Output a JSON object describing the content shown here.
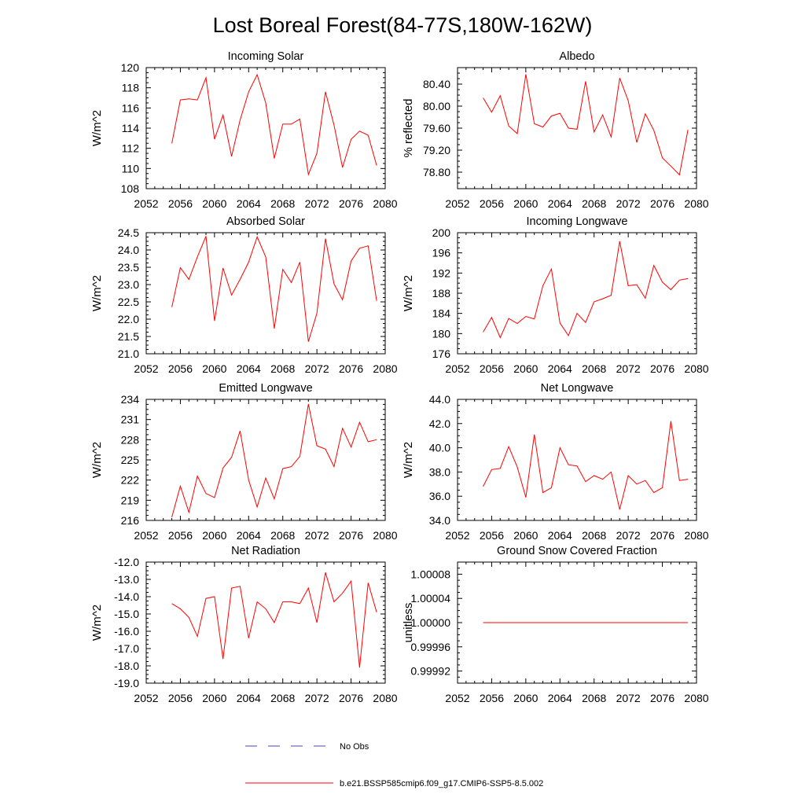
{
  "title": "Lost Boreal Forest(84-77S,180W-162W)",
  "legend": [
    {
      "label": "No Obs",
      "color": "#4a4aa8",
      "style": "dashed"
    },
    {
      "label": "b.e21.BSSP585cmip6.f09_g17.CMIP6-SSP5-8.5.002",
      "color": "#ff0000",
      "style": "solid"
    }
  ],
  "chart_data": [
    {
      "type": "line",
      "title": "Incoming Solar",
      "ylabel": "W/m^2",
      "xlim": [
        2052,
        2080
      ],
      "ylim": [
        108,
        120
      ],
      "xticks": [
        2052,
        2056,
        2060,
        2064,
        2068,
        2072,
        2076,
        2080
      ],
      "yticks": [
        108,
        110,
        112,
        114,
        116,
        118,
        120
      ],
      "yticklabels": [
        "108",
        "110",
        "112",
        "114",
        "116",
        "118",
        "120"
      ],
      "x": [
        2055,
        2056,
        2057,
        2058,
        2059,
        2060,
        2061,
        2062,
        2063,
        2064,
        2065,
        2066,
        2067,
        2068,
        2069,
        2070,
        2071,
        2072,
        2073,
        2074,
        2075,
        2076,
        2077,
        2078,
        2079
      ],
      "series": [
        {
          "color": "#ff0000",
          "values": [
            112.5,
            116.8,
            116.9,
            116.8,
            119.0,
            112.9,
            115.3,
            111.2,
            114.8,
            117.6,
            119.3,
            116.5,
            111.0,
            114.4,
            114.4,
            114.9,
            109.4,
            111.5,
            117.6,
            114.3,
            110.1,
            112.9,
            113.7,
            113.3,
            110.3
          ]
        }
      ]
    },
    {
      "type": "line",
      "title": "Albedo",
      "ylabel": "% reflected",
      "xlim": [
        2052,
        2080
      ],
      "ylim": [
        78.5,
        80.7
      ],
      "xticks": [
        2052,
        2056,
        2060,
        2064,
        2068,
        2072,
        2076,
        2080
      ],
      "yticks": [
        78.8,
        79.2,
        79.6,
        80.0,
        80.4
      ],
      "yticklabels": [
        "78.80",
        "79.20",
        "79.60",
        "80.00",
        "80.40"
      ],
      "x": [
        2055,
        2056,
        2057,
        2058,
        2059,
        2060,
        2061,
        2062,
        2063,
        2064,
        2065,
        2066,
        2067,
        2068,
        2069,
        2070,
        2071,
        2072,
        2073,
        2074,
        2075,
        2076,
        2077,
        2078,
        2079
      ],
      "series": [
        {
          "color": "#ff0000",
          "values": [
            80.15,
            79.89,
            80.19,
            79.64,
            79.5,
            80.58,
            79.68,
            79.62,
            79.82,
            79.87,
            79.6,
            79.58,
            80.45,
            79.53,
            79.84,
            79.44,
            80.51,
            80.1,
            79.34,
            79.86,
            79.56,
            79.06,
            78.91,
            78.75,
            79.57
          ]
        }
      ]
    },
    {
      "type": "line",
      "title": "Absorbed Solar",
      "ylabel": "W/m^2",
      "xlim": [
        2052,
        2080
      ],
      "ylim": [
        21.0,
        24.5
      ],
      "xticks": [
        2052,
        2056,
        2060,
        2064,
        2068,
        2072,
        2076,
        2080
      ],
      "yticks": [
        21.0,
        21.5,
        22.0,
        22.5,
        23.0,
        23.5,
        24.0,
        24.5
      ],
      "yticklabels": [
        "21.0",
        "21.5",
        "22.0",
        "22.5",
        "23.0",
        "23.5",
        "24.0",
        "24.5"
      ],
      "x": [
        2055,
        2056,
        2057,
        2058,
        2059,
        2060,
        2061,
        2062,
        2063,
        2064,
        2065,
        2066,
        2067,
        2068,
        2069,
        2070,
        2071,
        2072,
        2073,
        2074,
        2075,
        2076,
        2077,
        2078,
        2079
      ],
      "series": [
        {
          "color": "#ff0000",
          "values": [
            22.35,
            23.49,
            23.15,
            23.8,
            24.4,
            21.95,
            23.48,
            22.7,
            23.15,
            23.65,
            24.38,
            23.8,
            21.73,
            23.44,
            23.06,
            23.65,
            21.35,
            22.17,
            24.33,
            23.02,
            22.56,
            23.68,
            24.05,
            24.12,
            22.53
          ]
        }
      ]
    },
    {
      "type": "line",
      "title": "Incoming Longwave",
      "ylabel": "W/m^2",
      "xlim": [
        2052,
        2080
      ],
      "ylim": [
        176,
        200
      ],
      "xticks": [
        2052,
        2056,
        2060,
        2064,
        2068,
        2072,
        2076,
        2080
      ],
      "yticks": [
        176,
        180,
        184,
        188,
        192,
        196,
        200
      ],
      "yticklabels": [
        "176",
        "180",
        "184",
        "188",
        "192",
        "196",
        "200"
      ],
      "x": [
        2055,
        2056,
        2057,
        2058,
        2059,
        2060,
        2061,
        2062,
        2063,
        2064,
        2065,
        2066,
        2067,
        2068,
        2069,
        2070,
        2071,
        2072,
        2073,
        2074,
        2075,
        2076,
        2077,
        2078,
        2079
      ],
      "series": [
        {
          "color": "#ff0000",
          "values": [
            180.3,
            183.2,
            179.2,
            183.0,
            182.0,
            183.4,
            182.9,
            189.5,
            192.8,
            182.1,
            179.6,
            184.0,
            182.2,
            186.3,
            186.9,
            187.6,
            198.3,
            189.5,
            189.7,
            187.0,
            193.5,
            190.2,
            188.7,
            190.6,
            190.9
          ]
        }
      ]
    },
    {
      "type": "line",
      "title": "Emitted Longwave",
      "ylabel": "W/m^2",
      "xlim": [
        2052,
        2080
      ],
      "ylim": [
        216,
        234
      ],
      "xticks": [
        2052,
        2056,
        2060,
        2064,
        2068,
        2072,
        2076,
        2080
      ],
      "yticks": [
        216,
        219,
        222,
        225,
        228,
        231,
        234
      ],
      "yticklabels": [
        "216",
        "219",
        "222",
        "225",
        "228",
        "231",
        "234"
      ],
      "x": [
        2055,
        2056,
        2057,
        2058,
        2059,
        2060,
        2061,
        2062,
        2063,
        2064,
        2065,
        2066,
        2067,
        2068,
        2069,
        2070,
        2071,
        2072,
        2073,
        2074,
        2075,
        2076,
        2077,
        2078,
        2079
      ],
      "series": [
        {
          "color": "#ff0000",
          "values": [
            216.5,
            221.1,
            217.2,
            222.6,
            220.0,
            219.4,
            223.8,
            225.4,
            229.3,
            222.0,
            218.0,
            222.3,
            219.2,
            223.7,
            224.0,
            225.5,
            233.3,
            227.1,
            226.6,
            224.0,
            229.7,
            226.9,
            230.6,
            227.7,
            228.0
          ]
        }
      ]
    },
    {
      "type": "line",
      "title": "Net Longwave",
      "ylabel": "W/m^2",
      "xlim": [
        2052,
        2080
      ],
      "ylim": [
        34.0,
        44.0
      ],
      "xticks": [
        2052,
        2056,
        2060,
        2064,
        2068,
        2072,
        2076,
        2080
      ],
      "yticks": [
        34.0,
        36.0,
        38.0,
        40.0,
        42.0,
        44.0
      ],
      "yticklabels": [
        "34.0",
        "36.0",
        "38.0",
        "40.0",
        "42.0",
        "44.0"
      ],
      "x": [
        2055,
        2056,
        2057,
        2058,
        2059,
        2060,
        2061,
        2062,
        2063,
        2064,
        2065,
        2066,
        2067,
        2068,
        2069,
        2070,
        2071,
        2072,
        2073,
        2074,
        2075,
        2076,
        2077,
        2078,
        2079
      ],
      "series": [
        {
          "color": "#ff0000",
          "values": [
            36.8,
            38.2,
            38.3,
            40.1,
            38.4,
            35.9,
            41.1,
            36.3,
            36.7,
            40.0,
            38.6,
            38.5,
            37.2,
            37.7,
            37.4,
            38.0,
            34.9,
            37.7,
            37.0,
            37.3,
            36.3,
            36.7,
            42.2,
            37.3,
            37.4
          ]
        }
      ]
    },
    {
      "type": "line",
      "title": "Net Radiation",
      "ylabel": "W/m^2",
      "xlim": [
        2052,
        2080
      ],
      "ylim": [
        -19.0,
        -12.0
      ],
      "xticks": [
        2052,
        2056,
        2060,
        2064,
        2068,
        2072,
        2076,
        2080
      ],
      "yticks": [
        -19.0,
        -18.0,
        -17.0,
        -16.0,
        -15.0,
        -14.0,
        -13.0,
        -12.0
      ],
      "yticklabels": [
        "-19.0",
        "-18.0",
        "-17.0",
        "-16.0",
        "-15.0",
        "-14.0",
        "-13.0",
        "-12.0"
      ],
      "x": [
        2055,
        2056,
        2057,
        2058,
        2059,
        2060,
        2061,
        2062,
        2063,
        2064,
        2065,
        2066,
        2067,
        2068,
        2069,
        2070,
        2071,
        2072,
        2073,
        2074,
        2075,
        2076,
        2077,
        2078,
        2079
      ],
      "series": [
        {
          "color": "#ff0000",
          "values": [
            -14.4,
            -14.7,
            -15.2,
            -16.3,
            -14.1,
            -14.0,
            -17.6,
            -13.5,
            -13.4,
            -16.4,
            -14.3,
            -14.7,
            -15.5,
            -14.3,
            -14.3,
            -14.4,
            -13.5,
            -15.5,
            -12.6,
            -14.3,
            -13.8,
            -13.1,
            -18.1,
            -13.2,
            -14.9
          ]
        }
      ]
    },
    {
      "type": "line",
      "title": "Ground Snow Covered Fraction",
      "ylabel": "unitless",
      "xlim": [
        2052,
        2080
      ],
      "ylim": [
        0.9999,
        1.0001
      ],
      "xticks": [
        2052,
        2056,
        2060,
        2064,
        2068,
        2072,
        2076,
        2080
      ],
      "yticks": [
        0.99992,
        0.99996,
        1.0,
        1.00004,
        1.00008
      ],
      "yticklabels": [
        "0.99992",
        "0.99996",
        "1.00000",
        "1.00004",
        "1.00008"
      ],
      "x": [
        2055,
        2056,
        2057,
        2058,
        2059,
        2060,
        2061,
        2062,
        2063,
        2064,
        2065,
        2066,
        2067,
        2068,
        2069,
        2070,
        2071,
        2072,
        2073,
        2074,
        2075,
        2076,
        2077,
        2078,
        2079
      ],
      "series": [
        {
          "color": "#ff0000",
          "values": [
            1.0,
            1.0,
            1.0,
            1.0,
            1.0,
            1.0,
            1.0,
            1.0,
            1.0,
            1.0,
            1.0,
            1.0,
            1.0,
            1.0,
            1.0,
            1.0,
            1.0,
            1.0,
            1.0,
            1.0,
            1.0,
            1.0,
            1.0,
            1.0,
            1.0
          ]
        }
      ]
    }
  ]
}
